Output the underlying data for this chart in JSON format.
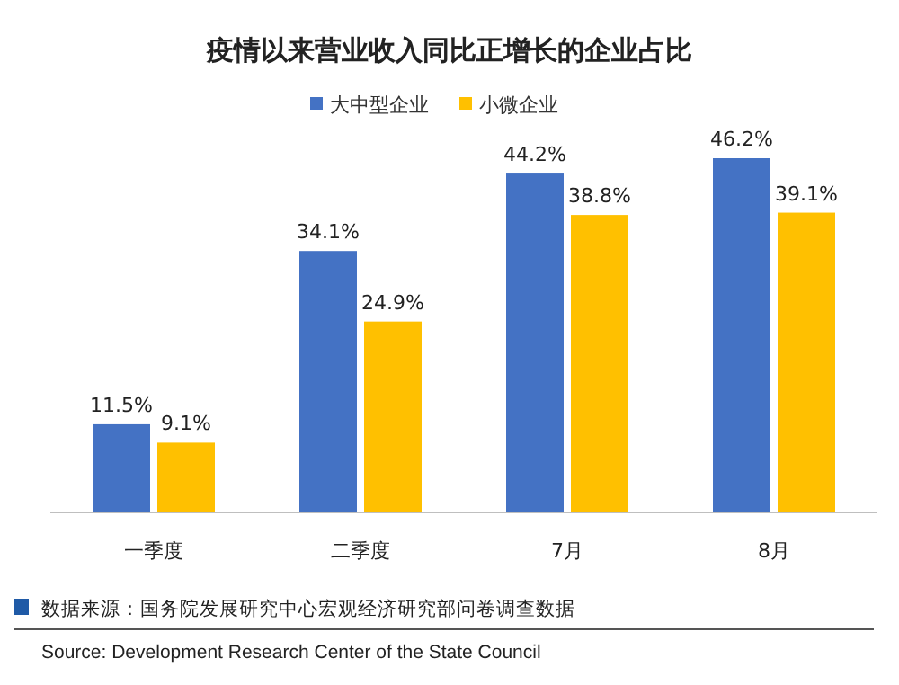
{
  "chart_data": {
    "type": "bar",
    "title": "疫情以来营业收入同比正增长的企业占比",
    "categories": [
      "一季度",
      "二季度",
      "7月",
      "8月"
    ],
    "series": [
      {
        "name": "大中型企业",
        "color": "#4472c4",
        "values": [
          11.5,
          34.1,
          44.2,
          46.2
        ],
        "value_labels": [
          "11.5%",
          "34.1%",
          "44.2%",
          "46.2%"
        ]
      },
      {
        "name": "小微企业",
        "color": "#ffc000",
        "values": [
          9.1,
          24.9,
          38.8,
          39.1
        ],
        "value_labels": [
          "9.1%",
          "24.9%",
          "38.8%",
          "39.1%"
        ]
      }
    ],
    "legend": "top",
    "annotations": [
      "数据来源：国务院发展研究中心宏观经济研究部问卷调查数据",
      "Source: Development Research Center of the State Council"
    ]
  }
}
